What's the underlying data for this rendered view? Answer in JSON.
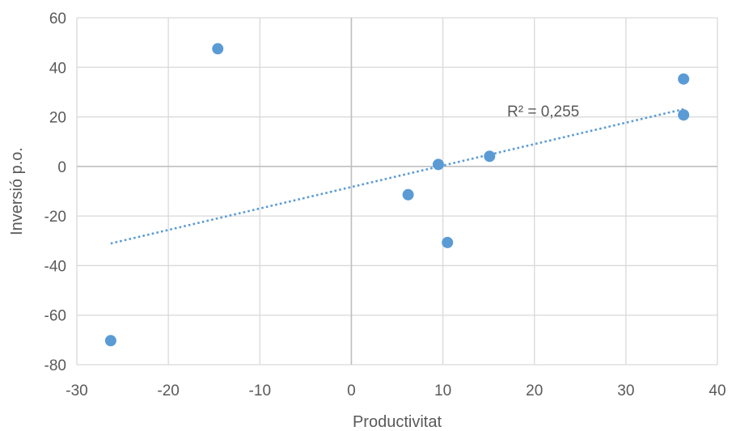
{
  "chart_data": {
    "type": "scatter",
    "title": "",
    "xlabel": "Productivitat",
    "ylabel": "Inversió p.o.",
    "xlim": [
      -30,
      40
    ],
    "ylim": [
      -80,
      60
    ],
    "x_ticks": [
      -30,
      -20,
      -10,
      0,
      10,
      20,
      30,
      40
    ],
    "y_ticks": [
      -80,
      -60,
      -40,
      -20,
      0,
      20,
      40,
      60
    ],
    "grid": true,
    "legend": "none",
    "series": [
      {
        "points": [
          {
            "x": -26.3,
            "y": -70.3
          },
          {
            "x": -14.6,
            "y": 47.5
          },
          {
            "x": 6.2,
            "y": -11.4
          },
          {
            "x": 9.5,
            "y": 0.8
          },
          {
            "x": 10.5,
            "y": -30.7
          },
          {
            "x": 15.1,
            "y": 4.1
          },
          {
            "x": 36.3,
            "y": 35.3
          },
          {
            "x": 36.3,
            "y": 20.8
          }
        ],
        "color": "#5b9bd5"
      }
    ],
    "trendline": {
      "type": "linear",
      "slope": 0.866,
      "intercept": -8.3,
      "x_range": [
        -26.3,
        36.3
      ],
      "style": "dotted",
      "color": "#5b9bd5",
      "label": "R² = 0,255"
    },
    "colors": {
      "grid": "#d9d9d9",
      "zero_axis": "#bfbfbf",
      "text": "#595959"
    }
  }
}
